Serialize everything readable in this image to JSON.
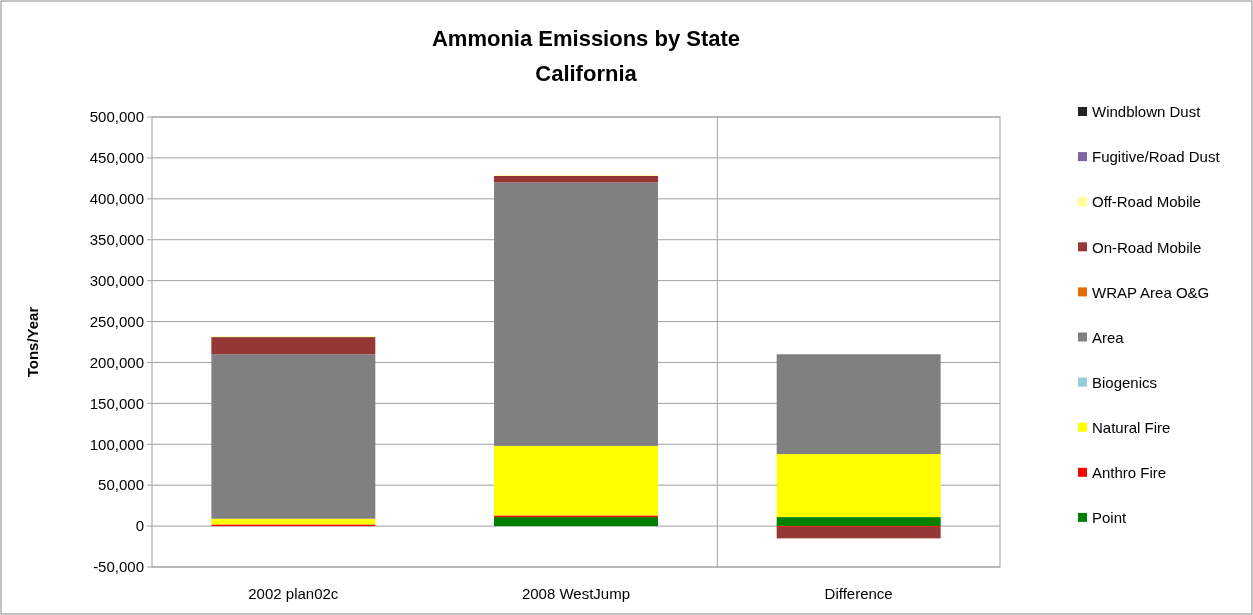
{
  "chart_data": {
    "type": "bar",
    "title": "Ammonia Emissions by State",
    "subtitle": "California",
    "ylabel": "Tons/Year",
    "stacked": true,
    "categories": [
      "2002 plan02c",
      "2008 WestJump",
      "Difference"
    ],
    "series": [
      {
        "name": "Point",
        "color": "#008000",
        "values": [
          0,
          11000,
          11000
        ]
      },
      {
        "name": "Anthro Fire",
        "color": "#ff0000",
        "values": [
          2000,
          2000,
          -1000
        ]
      },
      {
        "name": "Natural Fire",
        "color": "#ffff00",
        "values": [
          7000,
          85000,
          77000
        ]
      },
      {
        "name": "Biogenics",
        "color": "#93cddd",
        "values": [
          0,
          0,
          0
        ]
      },
      {
        "name": "Area",
        "color": "#808080",
        "values": [
          201000,
          322000,
          122000
        ]
      },
      {
        "name": "WRAP Area O&G",
        "color": "#e46c0a",
        "values": [
          0,
          0,
          0
        ]
      },
      {
        "name": "On-Road Mobile",
        "color": "#953735",
        "values": [
          21000,
          8000,
          -14000
        ]
      },
      {
        "name": "Off-Road Mobile",
        "color": "#ffff99",
        "values": [
          1000,
          1000,
          0
        ]
      },
      {
        "name": "Fugitive/Road Dust",
        "color": "#8064a2",
        "values": [
          0,
          0,
          0
        ]
      },
      {
        "name": "Windblown Dust",
        "color": "#222222",
        "values": [
          0,
          0,
          0
        ]
      }
    ],
    "ylim": [
      -50000,
      500000
    ],
    "yticks": [
      {
        "value": -50000,
        "label": "-50,000"
      },
      {
        "value": 0,
        "label": "0"
      },
      {
        "value": 50000,
        "label": "50,000"
      },
      {
        "value": 100000,
        "label": "100,000"
      },
      {
        "value": 150000,
        "label": "150,000"
      },
      {
        "value": 200000,
        "label": "200,000"
      },
      {
        "value": 250000,
        "label": "250,000"
      },
      {
        "value": 300000,
        "label": "300,000"
      },
      {
        "value": 350000,
        "label": "350,000"
      },
      {
        "value": 400000,
        "label": "400,000"
      },
      {
        "value": 450000,
        "label": "450,000"
      },
      {
        "value": 500000,
        "label": "500,000"
      }
    ],
    "grid": "y",
    "legend": "right"
  }
}
